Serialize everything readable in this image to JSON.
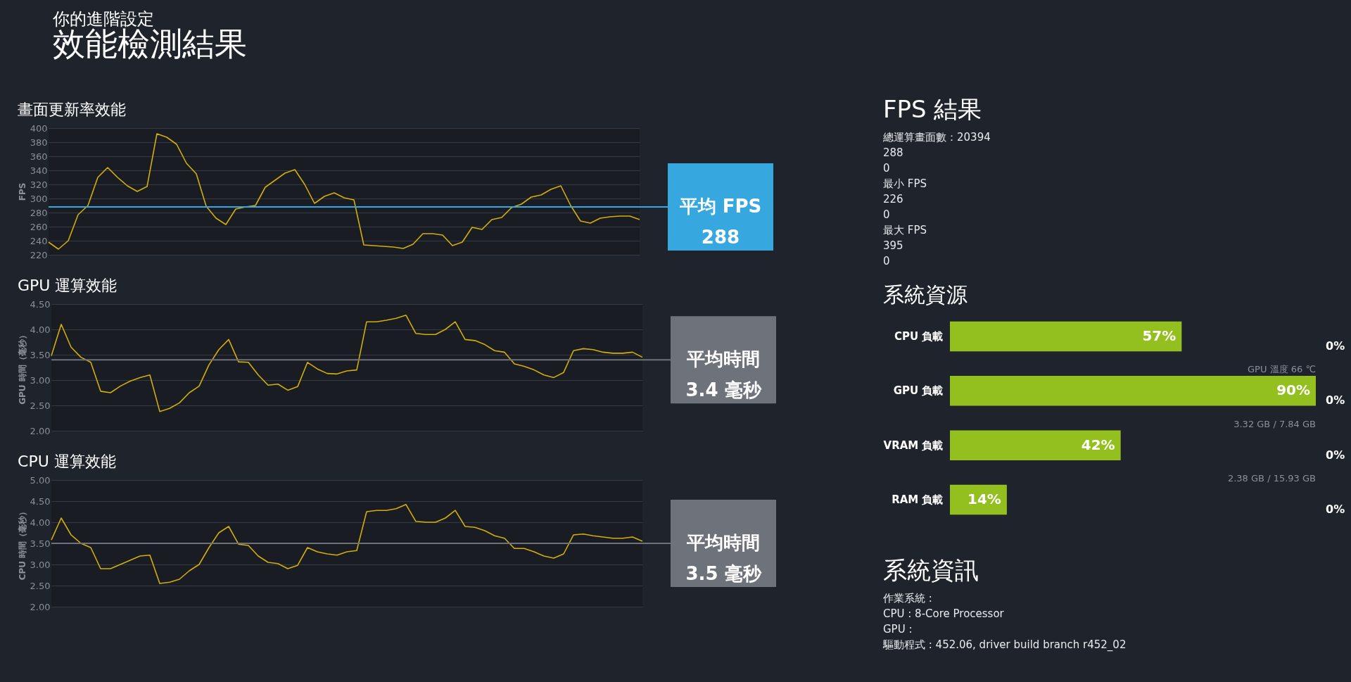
{
  "chart_data": [
    {
      "type": "other",
      "title": "效能檢測結果",
      "subtitle": "你的進階設定"
    },
    {
      "type": "line",
      "title": "畫面更新率效能",
      "ylabel": "FPS",
      "color": "#d2ae0a",
      "grid": "y",
      "tick_labels": "y",
      "categories": [
        null,
        null,
        null,
        null,
        null,
        null,
        null,
        null,
        null,
        null,
        null,
        null,
        null,
        null,
        null,
        null,
        null,
        null,
        null,
        null,
        null,
        null,
        null,
        null,
        null,
        null,
        null,
        null,
        null,
        null,
        null,
        null,
        null,
        null,
        null,
        null,
        null,
        null,
        null,
        null,
        null,
        null,
        null,
        null,
        null,
        null,
        null,
        null,
        null,
        null,
        null,
        null,
        null,
        null,
        null,
        null,
        null,
        null,
        null,
        null,
        null
      ],
      "values": [
        238,
        228,
        240,
        277,
        290,
        330,
        344,
        330,
        318,
        310,
        317,
        392,
        387,
        377,
        350,
        335,
        289,
        272,
        263,
        285,
        288,
        290,
        316,
        326,
        336,
        341,
        320,
        293,
        303,
        308,
        301,
        298,
        234,
        233,
        232,
        231,
        229,
        235,
        250,
        250,
        248,
        233,
        238,
        259,
        256,
        270,
        273,
        287,
        292,
        302,
        305,
        313,
        318,
        290,
        268,
        265,
        272,
        274,
        275,
        275,
        270
      ],
      "ylim": [
        220,
        400
      ],
      "yticks": [
        220,
        240,
        260,
        280,
        300,
        320,
        340,
        360,
        380,
        400
      ],
      "ref_lines": [
        {
          "axis": "y",
          "value": 288,
          "label": "平均 FPS\n288",
          "color": "#36a7df"
        }
      ]
    },
    {
      "type": "line",
      "title": "GPU 運算效能",
      "ylabel": "GPU 時間（毫秒）",
      "color": "#d2ae0a",
      "grid": "y",
      "tick_labels": "y",
      "categories": [
        null,
        null,
        null,
        null,
        null,
        null,
        null,
        null,
        null,
        null,
        null,
        null,
        null,
        null,
        null,
        null,
        null,
        null,
        null,
        null,
        null,
        null,
        null,
        null,
        null,
        null,
        null,
        null,
        null,
        null,
        null,
        null,
        null,
        null,
        null,
        null,
        null,
        null,
        null,
        null,
        null,
        null,
        null,
        null,
        null,
        null,
        null,
        null,
        null,
        null,
        null,
        null,
        null,
        null,
        null,
        null,
        null,
        null,
        null,
        null,
        null
      ],
      "values": [
        3.48,
        4.1,
        3.65,
        3.45,
        3.35,
        2.78,
        2.75,
        2.88,
        2.98,
        3.05,
        3.1,
        2.38,
        2.44,
        2.55,
        2.75,
        2.88,
        3.3,
        3.6,
        3.8,
        3.36,
        3.35,
        3.1,
        2.9,
        2.92,
        2.8,
        2.87,
        3.35,
        3.22,
        3.13,
        3.12,
        3.18,
        3.2,
        4.15,
        4.15,
        4.18,
        4.22,
        4.28,
        3.92,
        3.9,
        3.9,
        4.0,
        4.15,
        3.8,
        3.78,
        3.7,
        3.58,
        3.55,
        3.32,
        3.27,
        3.2,
        3.1,
        3.05,
        3.15,
        3.58,
        3.62,
        3.6,
        3.55,
        3.53,
        3.53,
        3.55,
        3.45
      ],
      "ylim": [
        2,
        4.5
      ],
      "yticks": [
        {
          "value": 2,
          "label": "2.00"
        },
        {
          "value": 2.5,
          "label": "2.50"
        },
        {
          "value": 3,
          "label": "3.00"
        },
        {
          "value": 3.5,
          "label": "3.50"
        },
        {
          "value": 4,
          "label": "4.00"
        },
        {
          "value": 4.5,
          "label": "4.50"
        }
      ],
      "ref_lines": [
        {
          "axis": "y",
          "value": 3.4,
          "label": "平均時間\n3.4 毫秒",
          "color": "#6e727b"
        }
      ]
    },
    {
      "type": "line",
      "title": "CPU 運算效能",
      "ylabel": "CPU 時間（毫秒）",
      "color": "#d2ae0a",
      "grid": "y",
      "tick_labels": "y",
      "categories": [
        null,
        null,
        null,
        null,
        null,
        null,
        null,
        null,
        null,
        null,
        null,
        null,
        null,
        null,
        null,
        null,
        null,
        null,
        null,
        null,
        null,
        null,
        null,
        null,
        null,
        null,
        null,
        null,
        null,
        null,
        null,
        null,
        null,
        null,
        null,
        null,
        null,
        null,
        null,
        null,
        null,
        null,
        null,
        null,
        null,
        null,
        null,
        null,
        null,
        null,
        null,
        null,
        null,
        null,
        null,
        null,
        null,
        null,
        null,
        null,
        null
      ],
      "values": [
        3.58,
        4.1,
        3.7,
        3.5,
        3.4,
        2.9,
        2.9,
        3.0,
        3.1,
        3.2,
        3.22,
        2.55,
        2.58,
        2.65,
        2.85,
        3.0,
        3.4,
        3.75,
        3.9,
        3.48,
        3.45,
        3.2,
        3.05,
        3.02,
        2.9,
        2.98,
        3.4,
        3.3,
        3.25,
        3.22,
        3.3,
        3.33,
        4.25,
        4.28,
        4.28,
        4.32,
        4.42,
        4.02,
        4.0,
        4.0,
        4.1,
        4.28,
        3.9,
        3.88,
        3.8,
        3.68,
        3.62,
        3.38,
        3.38,
        3.3,
        3.2,
        3.15,
        3.25,
        3.7,
        3.72,
        3.68,
        3.65,
        3.62,
        3.62,
        3.65,
        3.55
      ],
      "ylim": [
        2,
        5
      ],
      "yticks": [
        {
          "value": 2,
          "label": "2.00"
        },
        {
          "value": 2.5,
          "label": "2.50"
        },
        {
          "value": 3,
          "label": "3.00"
        },
        {
          "value": 3.5,
          "label": "3.50"
        },
        {
          "value": 4,
          "label": "4.00"
        },
        {
          "value": 4.5,
          "label": "4.50"
        },
        {
          "value": 5,
          "label": "5.00"
        }
      ],
      "ref_lines": [
        {
          "axis": "y",
          "value": 3.5,
          "label": "平均時間\n3.5 毫秒",
          "color": "#6e727b"
        }
      ]
    },
    {
      "type": "other",
      "title": "FPS 結果",
      "annotations": [
        "總運算畫面數：20394",
        "288",
        "0",
        "最小 FPS",
        "226",
        "0",
        "最大 FPS",
        "395",
        "0"
      ]
    },
    {
      "type": "bar",
      "title": "系統資源",
      "orientation": "horizontal",
      "color": "#93c01f",
      "tick_labels": "y",
      "categories": [
        "CPU 負載",
        "GPU 負載",
        "VRAM 負載",
        "RAM 負載"
      ],
      "values": [
        57,
        90,
        42,
        14
      ],
      "value_labels": [
        "57%",
        "90%",
        "42%",
        "14%"
      ],
      "annotations": [
        "0%",
        "0%",
        "0%",
        "0%",
        "GPU 溫度 66 ℃",
        "3.32 GB / 7.84 GB",
        "2.38 GB / 15.93 GB"
      ]
    },
    {
      "type": "other",
      "title": "系統資訊",
      "annotations": [
        "作業系統 :",
        "CPU : 8-Core Processor",
        "GPU :",
        "驅動程式 : 452.06, driver build branch r452_02"
      ]
    }
  ]
}
